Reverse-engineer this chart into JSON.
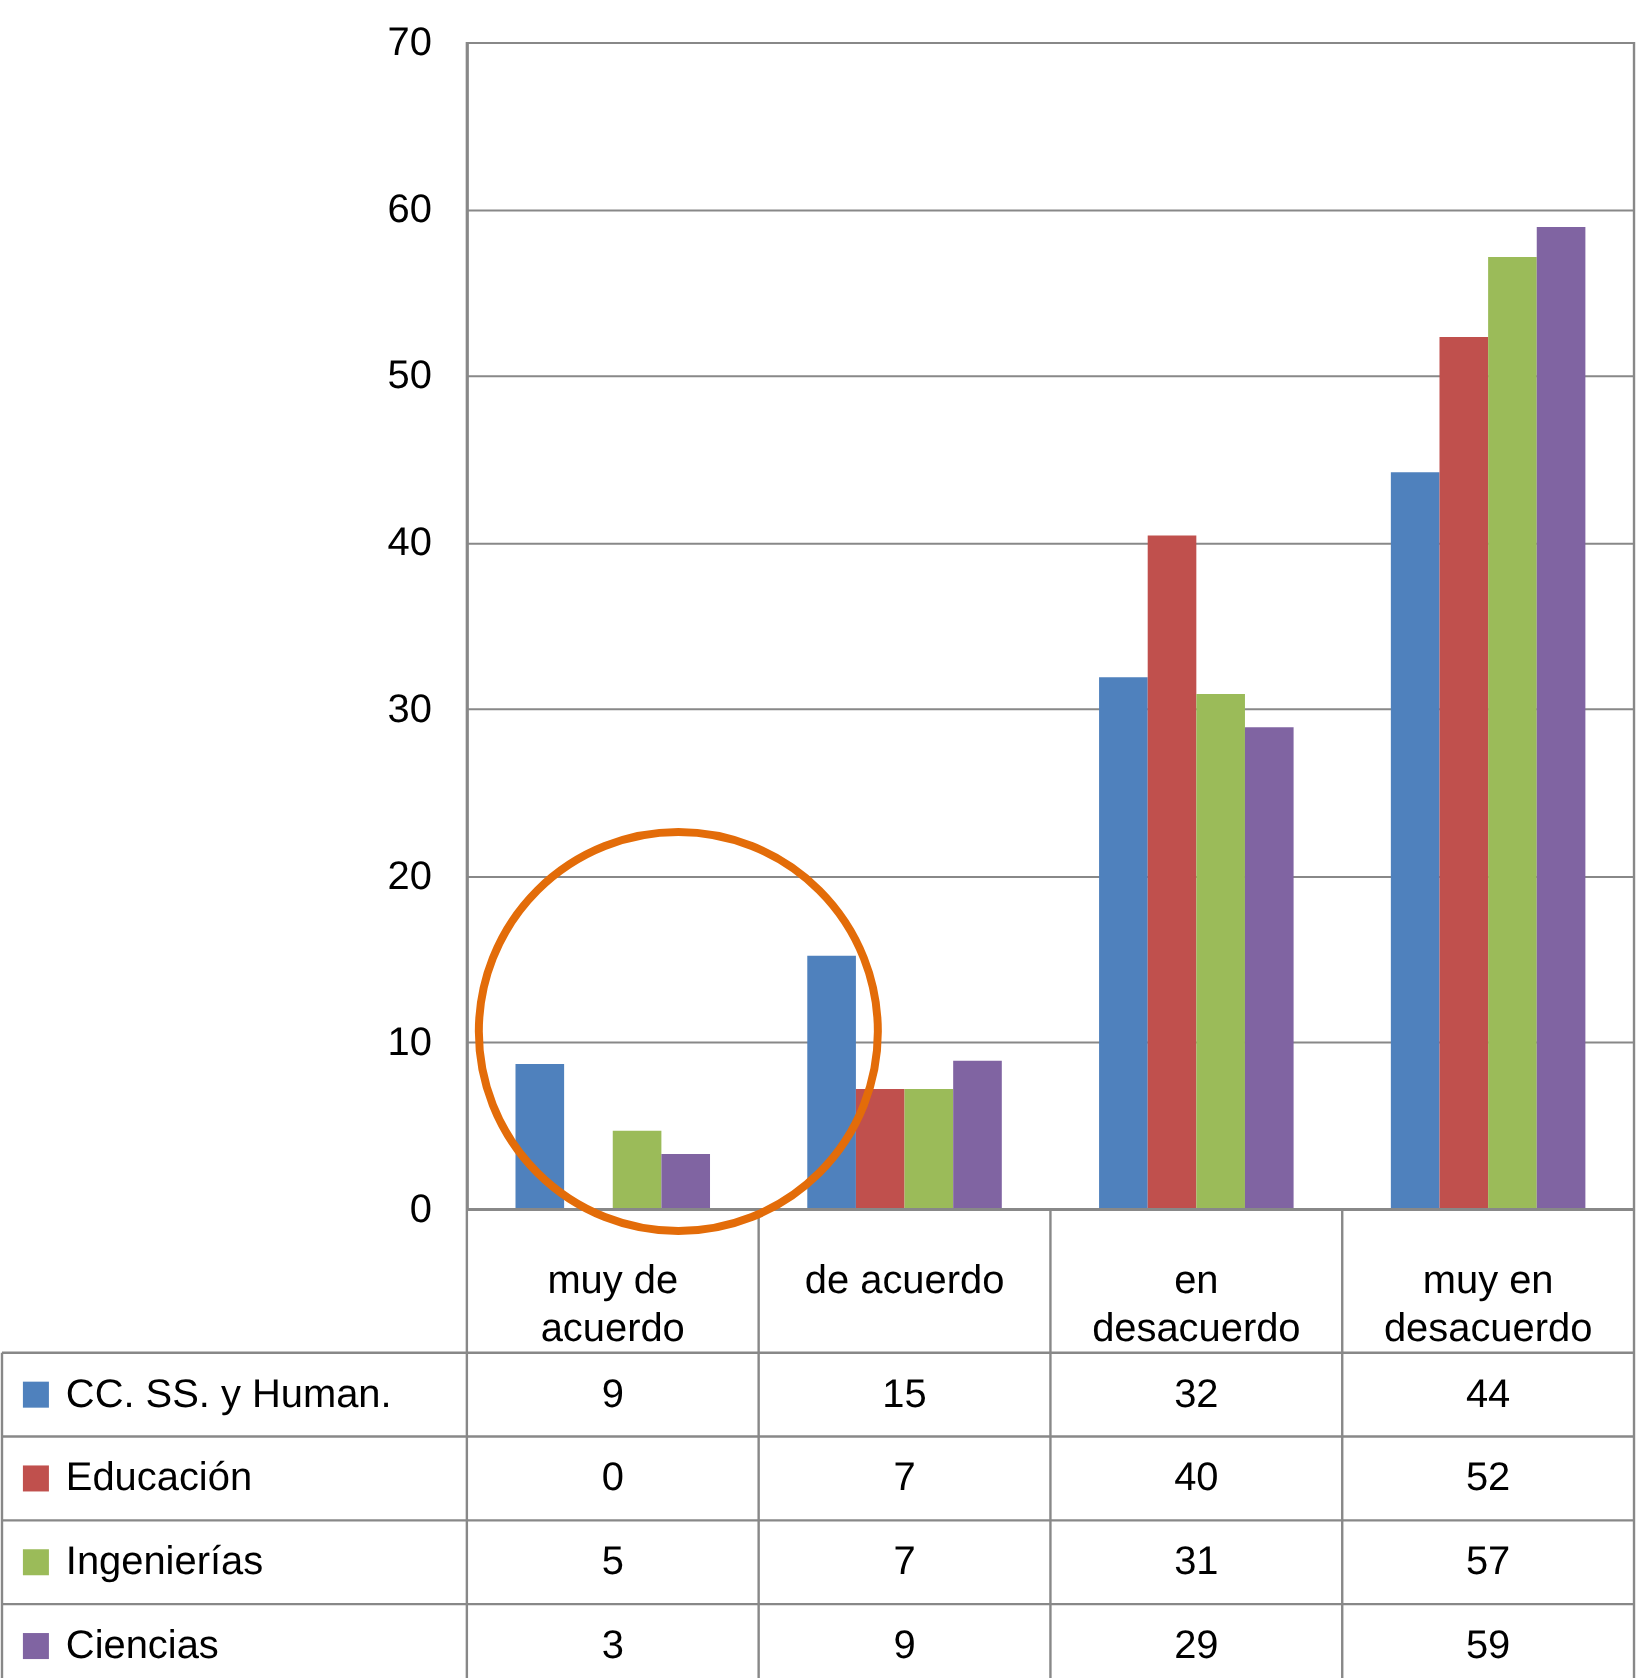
{
  "chart_data": {
    "type": "bar",
    "categories": [
      "muy de acuerdo",
      "de acuerdo",
      "en desacuerdo",
      "muy en desacuerdo"
    ],
    "series": [
      {
        "name": "CC. SS. y Human.",
        "color": "#4f81bd",
        "values": [
          8.7,
          15.2,
          31.9,
          44.2
        ],
        "value_labels": [
          "9",
          "15",
          "32",
          "44"
        ]
      },
      {
        "name": "Educación",
        "color": "#c0504d",
        "values": [
          0,
          7.2,
          40.4,
          52.3
        ],
        "value_labels": [
          "0",
          "7",
          "40",
          "52"
        ]
      },
      {
        "name": "Ingenierías",
        "color": "#9bbb59",
        "values": [
          4.7,
          7.2,
          30.9,
          57.1
        ],
        "value_labels": [
          "5",
          "7",
          "31",
          "57"
        ]
      },
      {
        "name": "Ciencias",
        "color": "#8064a2",
        "values": [
          3.3,
          8.9,
          28.9,
          58.9
        ],
        "value_labels": [
          "3",
          "9",
          "29",
          "59"
        ]
      }
    ],
    "ylim": [
      0,
      70
    ],
    "yticks": [
      0,
      10,
      20,
      30,
      40,
      50,
      60,
      70
    ],
    "grid": "y",
    "legend": "bottom"
  }
}
